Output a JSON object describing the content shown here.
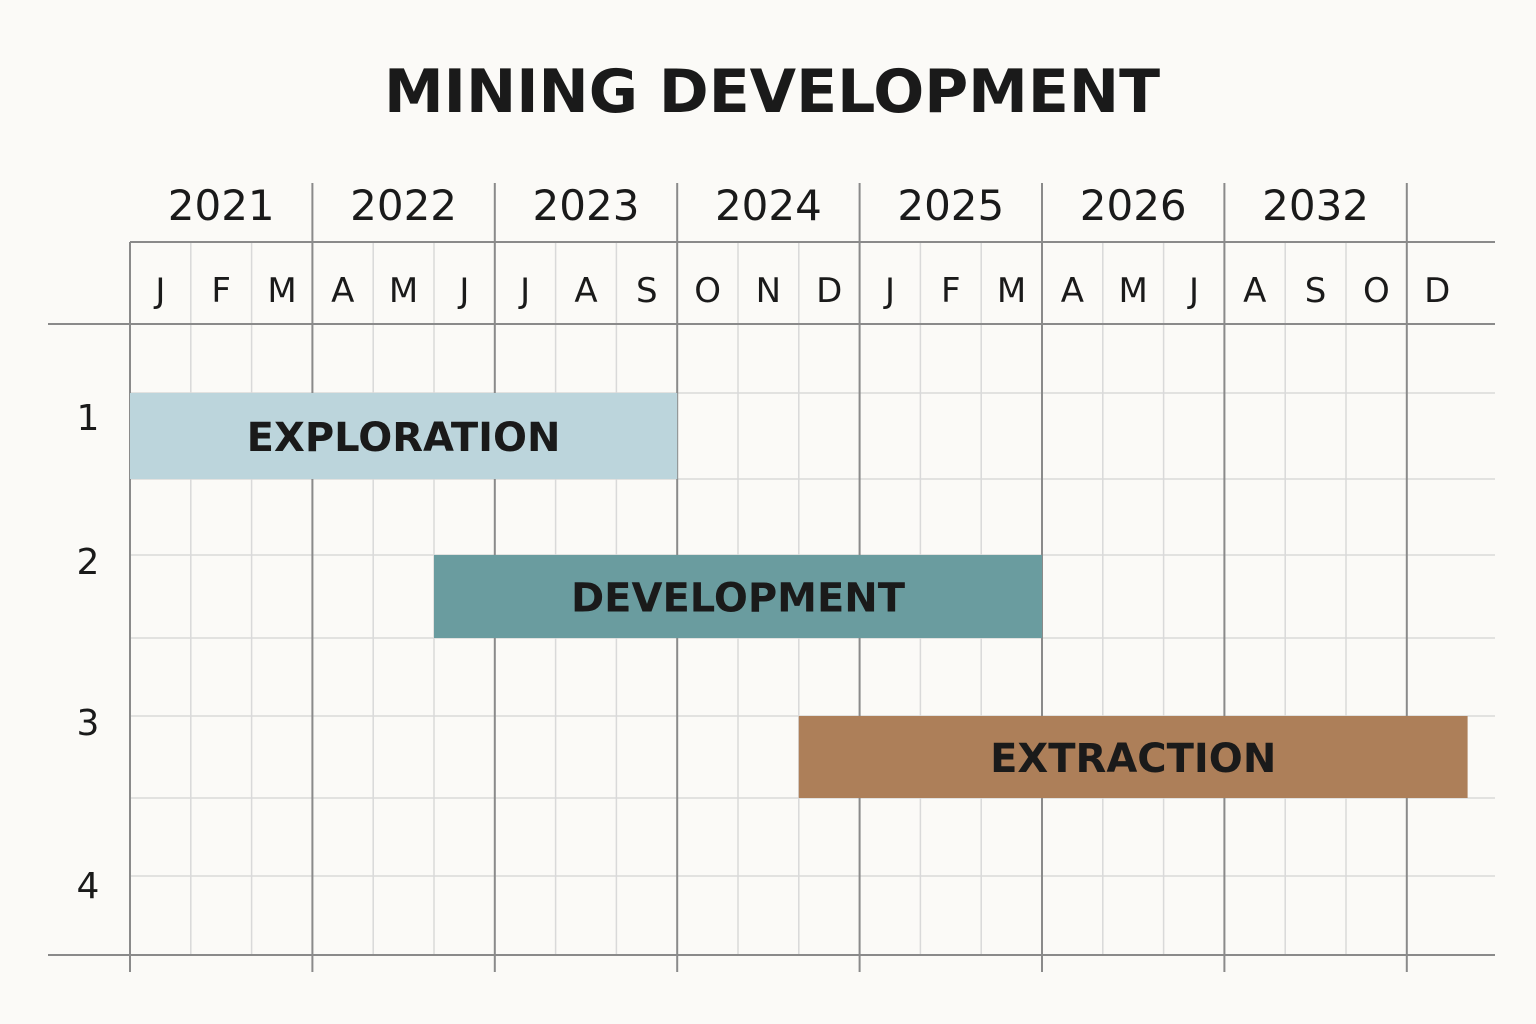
{
  "chart_data": {
    "type": "gantt",
    "title": "MINING DEVELOPMENT",
    "years": [
      {
        "label": "2021",
        "months": [
          "J",
          "F",
          "M"
        ]
      },
      {
        "label": "2022",
        "months": [
          "A",
          "M",
          "J"
        ]
      },
      {
        "label": "2023",
        "months": [
          "J",
          "A",
          "S"
        ]
      },
      {
        "label": "2024",
        "months": [
          "O",
          "N",
          "D"
        ]
      },
      {
        "label": "2025",
        "months": [
          "J",
          "F",
          "M"
        ]
      },
      {
        "label": "2026",
        "months": [
          "A",
          "M",
          "J"
        ]
      },
      {
        "label": "2032",
        "months": [
          "A",
          "S",
          "O"
        ]
      },
      {
        "label": "",
        "months": [
          "D"
        ]
      }
    ],
    "rows": [
      "1",
      "2",
      "3",
      "4"
    ],
    "tasks": [
      {
        "name": "EXPLORATION",
        "row": 1,
        "start": 0,
        "end": 9,
        "color": "#bcd5dc"
      },
      {
        "name": "DEVELOPMENT",
        "row": 2,
        "start": 5,
        "end": 15,
        "color": "#6a9c9f"
      },
      {
        "name": "EXTRACTION",
        "row": 3,
        "start": 11,
        "end": 22,
        "color": "#ad7f59"
      }
    ],
    "colors": {
      "grid_light": "#d9d9d9",
      "grid_dark": "#8a8a8a",
      "text": "#1a1a1a"
    }
  }
}
